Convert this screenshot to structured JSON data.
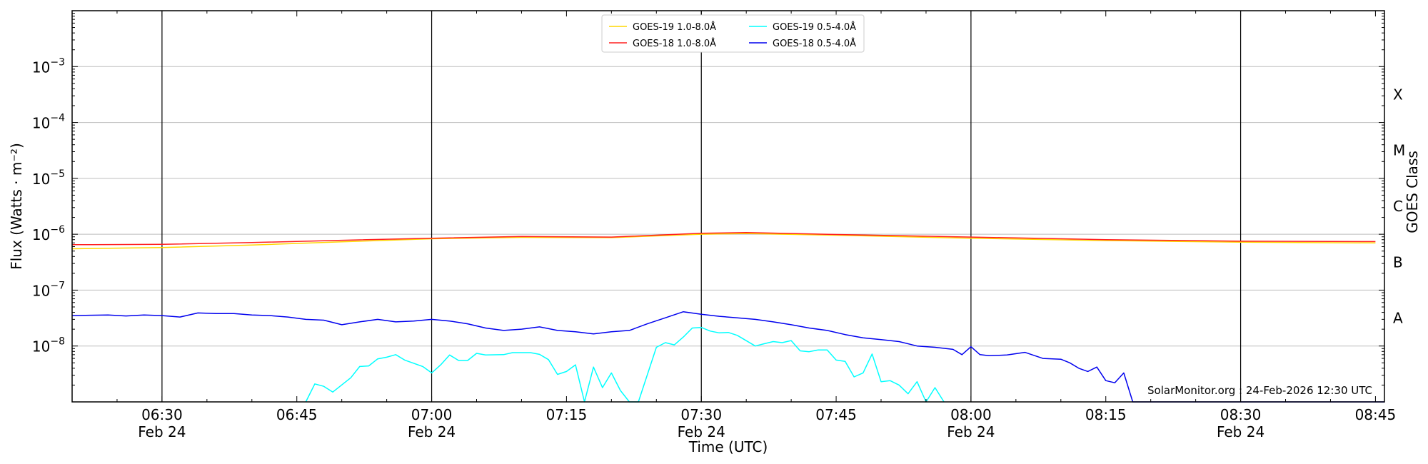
{
  "chart_data": {
    "type": "line",
    "y_scale": "log",
    "ylim": [
      1e-09,
      0.01
    ],
    "x_range": [
      "06:20",
      "08:46"
    ],
    "xlabel": "Time (UTC)",
    "ylabel": "Flux (Watts · m⁻²)",
    "right_axis_label": "GOES Class",
    "grid": "horizontal at decades; vertical black lines every 30 minutes",
    "legend_placement": "top-center",
    "x_ticks": [
      {
        "t": "06:30",
        "line1": "06:30",
        "line2": "Feb 24"
      },
      {
        "t": "06:45",
        "line1": "06:45",
        "line2": ""
      },
      {
        "t": "07:00",
        "line1": "07:00",
        "line2": "Feb 24"
      },
      {
        "t": "07:15",
        "line1": "07:15",
        "line2": ""
      },
      {
        "t": "07:30",
        "line1": "07:30",
        "line2": "Feb 24"
      },
      {
        "t": "07:45",
        "line1": "07:45",
        "line2": ""
      },
      {
        "t": "08:00",
        "line1": "08:00",
        "line2": "Feb 24"
      },
      {
        "t": "08:15",
        "line1": "08:15",
        "line2": ""
      },
      {
        "t": "08:30",
        "line1": "08:30",
        "line2": "Feb 24"
      },
      {
        "t": "08:45",
        "line1": "08:45",
        "line2": ""
      }
    ],
    "vlines": [
      "06:30",
      "07:00",
      "07:30",
      "08:00",
      "08:30"
    ],
    "y_ticks": [
      {
        "value": 1e-08,
        "base": "10",
        "exp": "−8"
      },
      {
        "value": 1e-07,
        "base": "10",
        "exp": "−7"
      },
      {
        "value": 1e-06,
        "base": "10",
        "exp": "−6"
      },
      {
        "value": 1e-05,
        "base": "10",
        "exp": "−5"
      },
      {
        "value": 0.0001,
        "base": "10",
        "exp": "−4"
      },
      {
        "value": 0.001,
        "base": "10",
        "exp": "−3"
      }
    ],
    "goes_classes": [
      {
        "label": "A",
        "value": 3.16e-08
      },
      {
        "label": "B",
        "value": 3.16e-07
      },
      {
        "label": "C",
        "value": 3.16e-06
      },
      {
        "label": "M",
        "value": 3.16e-05
      },
      {
        "label": "X",
        "value": 0.000316
      }
    ],
    "series": [
      {
        "name": "GOES-19 1.0-8.0Å",
        "color": "#ffd700",
        "points": [
          [
            "06:20",
            5.5e-07
          ],
          [
            "06:30",
            5.8e-07
          ],
          [
            "06:40",
            6.4e-07
          ],
          [
            "06:50",
            7.3e-07
          ],
          [
            "07:00",
            8.3e-07
          ],
          [
            "07:10",
            8.8e-07
          ],
          [
            "07:20",
            8.7e-07
          ],
          [
            "07:30",
            1e-06
          ],
          [
            "07:35",
            1.03e-06
          ],
          [
            "07:45",
            9.6e-07
          ],
          [
            "08:00",
            8.5e-07
          ],
          [
            "08:15",
            7.7e-07
          ],
          [
            "08:30",
            7.2e-07
          ],
          [
            "08:45",
            7e-07
          ]
        ]
      },
      {
        "name": "GOES-18 1.0-8.0Å",
        "color": "#ff2020",
        "points": [
          [
            "06:20",
            6.5e-07
          ],
          [
            "06:30",
            6.6e-07
          ],
          [
            "06:40",
            7.1e-07
          ],
          [
            "06:50",
            7.8e-07
          ],
          [
            "07:00",
            8.5e-07
          ],
          [
            "07:10",
            9.1e-07
          ],
          [
            "07:20",
            8.9e-07
          ],
          [
            "07:30",
            1.04e-06
          ],
          [
            "07:35",
            1.07e-06
          ],
          [
            "07:45",
            9.9e-07
          ],
          [
            "08:00",
            8.9e-07
          ],
          [
            "08:15",
            8e-07
          ],
          [
            "08:30",
            7.5e-07
          ],
          [
            "08:45",
            7.4e-07
          ]
        ]
      },
      {
        "name": "GOES-19 0.5-4.0Å",
        "color": "#00ffff",
        "points": [
          [
            "06:46",
            1e-09
          ],
          [
            "06:47",
            2.1e-09
          ],
          [
            "06:48",
            1.9e-09
          ],
          [
            "06:49",
            1.5e-09
          ],
          [
            "06:51",
            2.7e-09
          ],
          [
            "06:52",
            4.3e-09
          ],
          [
            "06:53",
            4.4e-09
          ],
          [
            "06:54",
            5.9e-09
          ],
          [
            "06:55",
            6.3e-09
          ],
          [
            "06:56",
            7e-09
          ],
          [
            "06:57",
            5.6e-09
          ],
          [
            "06:59",
            4.3e-09
          ],
          [
            "07:00",
            3.3e-09
          ],
          [
            "07:01",
            4.6e-09
          ],
          [
            "07:02",
            6.9e-09
          ],
          [
            "07:03",
            5.5e-09
          ],
          [
            "07:04",
            5.5e-09
          ],
          [
            "07:05",
            7.4e-09
          ],
          [
            "07:06",
            6.9e-09
          ],
          [
            "07:08",
            7e-09
          ],
          [
            "07:09",
            7.6e-09
          ],
          [
            "07:10",
            7.6e-09
          ],
          [
            "07:11",
            7.6e-09
          ],
          [
            "07:12",
            7.1e-09
          ],
          [
            "07:13",
            5.7e-09
          ],
          [
            "07:14",
            3.1e-09
          ],
          [
            "07:15",
            3.5e-09
          ],
          [
            "07:16",
            4.6e-09
          ],
          [
            "07:17",
            1e-09
          ],
          [
            "07:18",
            4.2e-09
          ],
          [
            "07:19",
            1.8e-09
          ],
          [
            "07:20",
            3.3e-09
          ],
          [
            "07:21",
            1.6e-09
          ],
          [
            "07:22",
            1e-09
          ],
          [
            "07:23",
            1e-09
          ],
          [
            "07:25",
            9.5e-09
          ],
          [
            "07:26",
            1.15e-08
          ],
          [
            "07:27",
            1.05e-08
          ],
          [
            "07:28",
            1.45e-08
          ],
          [
            "07:29",
            2.1e-08
          ],
          [
            "07:30",
            2.15e-08
          ],
          [
            "07:31",
            1.85e-08
          ],
          [
            "07:32",
            1.72e-08
          ],
          [
            "07:33",
            1.75e-08
          ],
          [
            "07:34",
            1.55e-08
          ],
          [
            "07:36",
            1e-08
          ],
          [
            "07:37",
            1.1e-08
          ],
          [
            "07:38",
            1.2e-08
          ],
          [
            "07:39",
            1.15e-08
          ],
          [
            "07:40",
            1.25e-08
          ],
          [
            "07:41",
            8.2e-09
          ],
          [
            "07:42",
            7.9e-09
          ],
          [
            "07:43",
            8.5e-09
          ],
          [
            "07:44",
            8.5e-09
          ],
          [
            "07:45",
            5.6e-09
          ],
          [
            "07:46",
            5.3e-09
          ],
          [
            "07:47",
            2.8e-09
          ],
          [
            "07:48",
            3.3e-09
          ],
          [
            "07:49",
            7.2e-09
          ],
          [
            "07:50",
            2.3e-09
          ],
          [
            "07:51",
            2.4e-09
          ],
          [
            "07:52",
            2e-09
          ],
          [
            "07:53",
            1.4e-09
          ],
          [
            "07:54",
            2.3e-09
          ],
          [
            "07:55",
            1e-09
          ],
          [
            "07:56",
            1.8e-09
          ],
          [
            "07:57",
            1e-09
          ]
        ]
      },
      {
        "name": "GOES-18 0.5-4.0Å",
        "color": "#0000ee",
        "points": [
          [
            "06:20",
            3.5e-08
          ],
          [
            "06:22",
            3.55e-08
          ],
          [
            "06:24",
            3.6e-08
          ],
          [
            "06:26",
            3.45e-08
          ],
          [
            "06:28",
            3.6e-08
          ],
          [
            "06:30",
            3.5e-08
          ],
          [
            "06:32",
            3.3e-08
          ],
          [
            "06:34",
            3.9e-08
          ],
          [
            "06:36",
            3.8e-08
          ],
          [
            "06:38",
            3.8e-08
          ],
          [
            "06:40",
            3.6e-08
          ],
          [
            "06:42",
            3.5e-08
          ],
          [
            "06:44",
            3.3e-08
          ],
          [
            "06:46",
            3e-08
          ],
          [
            "06:48",
            2.9e-08
          ],
          [
            "06:50",
            2.4e-08
          ],
          [
            "06:52",
            2.7e-08
          ],
          [
            "06:54",
            3e-08
          ],
          [
            "06:56",
            2.7e-08
          ],
          [
            "06:58",
            2.8e-08
          ],
          [
            "07:00",
            3e-08
          ],
          [
            "07:02",
            2.8e-08
          ],
          [
            "07:04",
            2.5e-08
          ],
          [
            "07:06",
            2.1e-08
          ],
          [
            "07:08",
            1.9e-08
          ],
          [
            "07:10",
            2e-08
          ],
          [
            "07:12",
            2.2e-08
          ],
          [
            "07:14",
            1.9e-08
          ],
          [
            "07:16",
            1.8e-08
          ],
          [
            "07:18",
            1.65e-08
          ],
          [
            "07:20",
            1.8e-08
          ],
          [
            "07:22",
            1.9e-08
          ],
          [
            "07:24",
            2.5e-08
          ],
          [
            "07:26",
            3.2e-08
          ],
          [
            "07:28",
            4.1e-08
          ],
          [
            "07:30",
            3.7e-08
          ],
          [
            "07:32",
            3.4e-08
          ],
          [
            "07:34",
            3.2e-08
          ],
          [
            "07:36",
            3e-08
          ],
          [
            "07:38",
            2.7e-08
          ],
          [
            "07:40",
            2.4e-08
          ],
          [
            "07:42",
            2.1e-08
          ],
          [
            "07:44",
            1.9e-08
          ],
          [
            "07:46",
            1.6e-08
          ],
          [
            "07:48",
            1.4e-08
          ],
          [
            "07:50",
            1.3e-08
          ],
          [
            "07:52",
            1.2e-08
          ],
          [
            "07:54",
            1e-08
          ],
          [
            "07:56",
            9.5e-09
          ],
          [
            "07:58",
            8.7e-09
          ],
          [
            "07:59",
            7e-09
          ],
          [
            "08:00",
            9.7e-09
          ],
          [
            "08:01",
            7e-09
          ],
          [
            "08:02",
            6.7e-09
          ],
          [
            "08:04",
            6.9e-09
          ],
          [
            "08:06",
            7.7e-09
          ],
          [
            "08:08",
            6e-09
          ],
          [
            "08:10",
            5.8e-09
          ],
          [
            "08:11",
            5e-09
          ],
          [
            "08:12",
            4e-09
          ],
          [
            "08:13",
            3.5e-09
          ],
          [
            "08:14",
            4.2e-09
          ],
          [
            "08:15",
            2.4e-09
          ],
          [
            "08:16",
            2.2e-09
          ],
          [
            "08:17",
            3.3e-09
          ],
          [
            "08:18",
            1e-09
          ],
          [
            "08:46",
            1e-09
          ]
        ]
      }
    ],
    "annotation": "SolarMonitor.org : 24-Feb-2026 12:30 UTC"
  }
}
